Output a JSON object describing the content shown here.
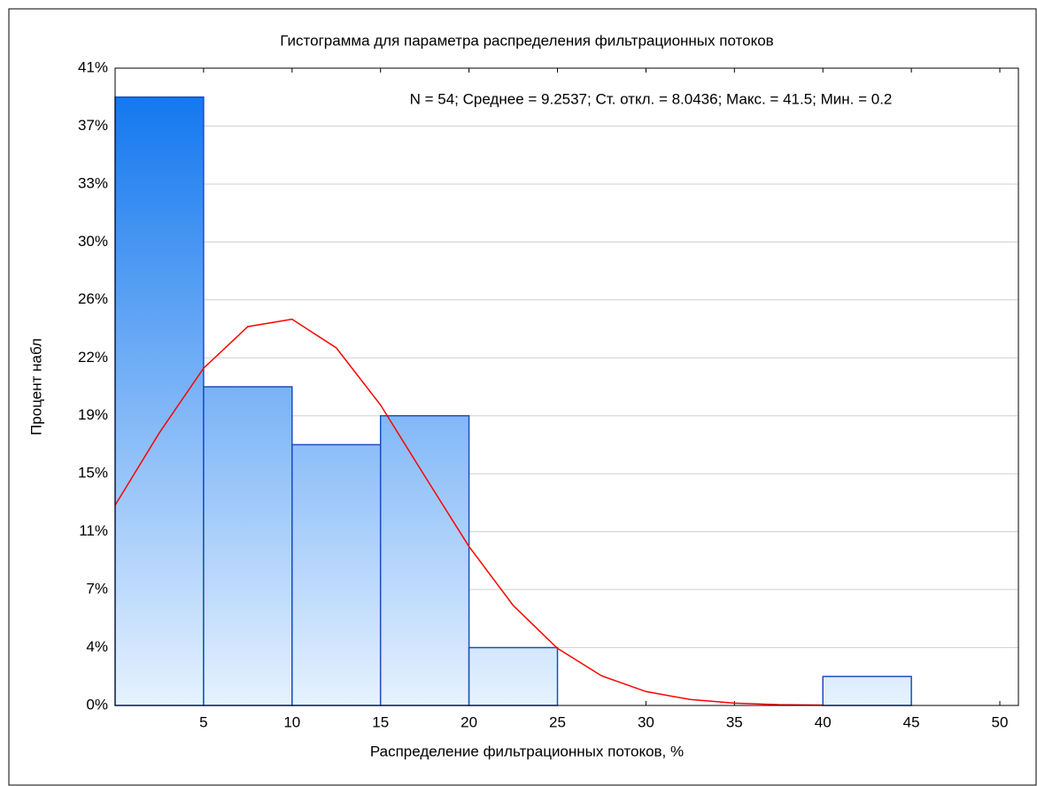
{
  "chart_data": {
    "type": "histogram",
    "title": "Гистограмма для параметра распределения фильтрационных потоков",
    "annotation": "N = 54; Среднее = 9.2537; Ст. откл. = 8.0436; Макс. = 41.5; Мин. = 0.2",
    "x_label": "Распределение фильтрационных потоков, %",
    "y_label": "Процент набл",
    "bins": [
      0,
      5,
      10,
      15,
      20,
      25,
      30,
      35,
      40,
      45
    ],
    "values": [
      38.89,
      20.37,
      16.67,
      18.52,
      3.7,
      0,
      0,
      0,
      1.85
    ],
    "color": "#1a7ff0",
    "fit_curve": {
      "color": "#ff0000",
      "x": [
        0,
        2.5,
        5,
        7.5,
        10,
        12.5,
        15,
        17.5,
        20,
        22.5,
        25,
        27.5,
        30,
        32.5,
        35,
        37.5,
        40
      ],
      "values": [
        12.8,
        17.43,
        21.56,
        24.22,
        24.69,
        22.86,
        19.21,
        14.66,
        10.16,
        6.39,
        3.65,
        1.89,
        0.89,
        0.38,
        0.15,
        0.05,
        0.02
      ]
    },
    "xlim": [
      0,
      51.05
    ],
    "xticks": [
      5,
      10,
      15,
      20,
      25,
      30,
      35,
      40,
      45,
      50
    ],
    "ylim": [
      0,
      40.74
    ],
    "yticks": [
      {
        "value": 0,
        "label": "0%"
      },
      {
        "value": 3.7,
        "label": "4%"
      },
      {
        "value": 7.41,
        "label": "7%"
      },
      {
        "value": 11.11,
        "label": "11%"
      },
      {
        "value": 14.81,
        "label": "15%"
      },
      {
        "value": 18.52,
        "label": "19%"
      },
      {
        "value": 22.22,
        "label": "22%"
      },
      {
        "value": 25.93,
        "label": "26%"
      },
      {
        "value": 29.63,
        "label": "30%"
      },
      {
        "value": 33.33,
        "label": "33%"
      },
      {
        "value": 37.04,
        "label": "37%"
      },
      {
        "value": 40.74,
        "label": "41%"
      }
    ],
    "grid": true
  }
}
